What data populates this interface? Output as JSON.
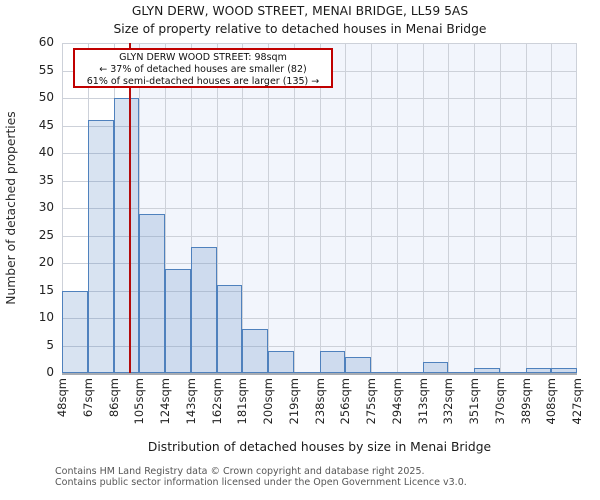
{
  "chart_data": {
    "type": "bar",
    "title": "GLYN DERW, WOOD STREET, MENAI BRIDGE, LL59 5AS",
    "subtitle": "Size of property relative to detached houses in Menai Bridge",
    "xlabel": "Distribution of detached houses by size in Menai Bridge",
    "ylabel": "Number of detached properties",
    "ylim": [
      0,
      60
    ],
    "y_tick_step": 5,
    "y_tick_labels": [
      "60",
      "55",
      "50",
      "45",
      "40",
      "35",
      "30",
      "25",
      "20",
      "15",
      "10",
      "5",
      "0"
    ],
    "x_tick_labels": [
      "48sqm",
      "67sqm",
      "86sqm",
      "105sqm",
      "124sqm",
      "143sqm",
      "162sqm",
      "181sqm",
      "200sqm",
      "219sqm",
      "238sqm",
      "256sqm",
      "275sqm",
      "294sqm",
      "313sqm",
      "332sqm",
      "351sqm",
      "370sqm",
      "389sqm",
      "408sqm",
      "427sqm"
    ],
    "bin_edges_sqm": [
      48,
      67,
      86,
      105,
      124,
      143,
      162,
      181,
      200,
      219,
      238,
      256,
      275,
      294,
      313,
      332,
      351,
      370,
      389,
      408,
      427
    ],
    "values": [
      15,
      46,
      50,
      29,
      19,
      23,
      16,
      8,
      4,
      0,
      4,
      3,
      0,
      0,
      2,
      0,
      1,
      0,
      1,
      1
    ],
    "grid": true,
    "legend": null,
    "marker": {
      "sqm": 98,
      "label": "98sqm"
    },
    "annotation": {
      "line1": "GLYN DERW WOOD STREET: 98sqm",
      "line2": "← 37% of detached houses are smaller (82)",
      "line3": "61% of semi-detached houses are larger (135) →"
    },
    "colors": {
      "bar_fill": "#d9e4f3",
      "bar_border": "#4f81bd",
      "marker_line": "#b40b0b",
      "annotation_border": "#c00000",
      "grid_line": "#cdd1d9",
      "right_region_tint": "#f2f5fc"
    }
  },
  "footer": {
    "line1": "Contains HM Land Registry data © Crown copyright and database right 2025.",
    "line2": "Contains public sector information licensed under the Open Government Licence v3.0."
  }
}
